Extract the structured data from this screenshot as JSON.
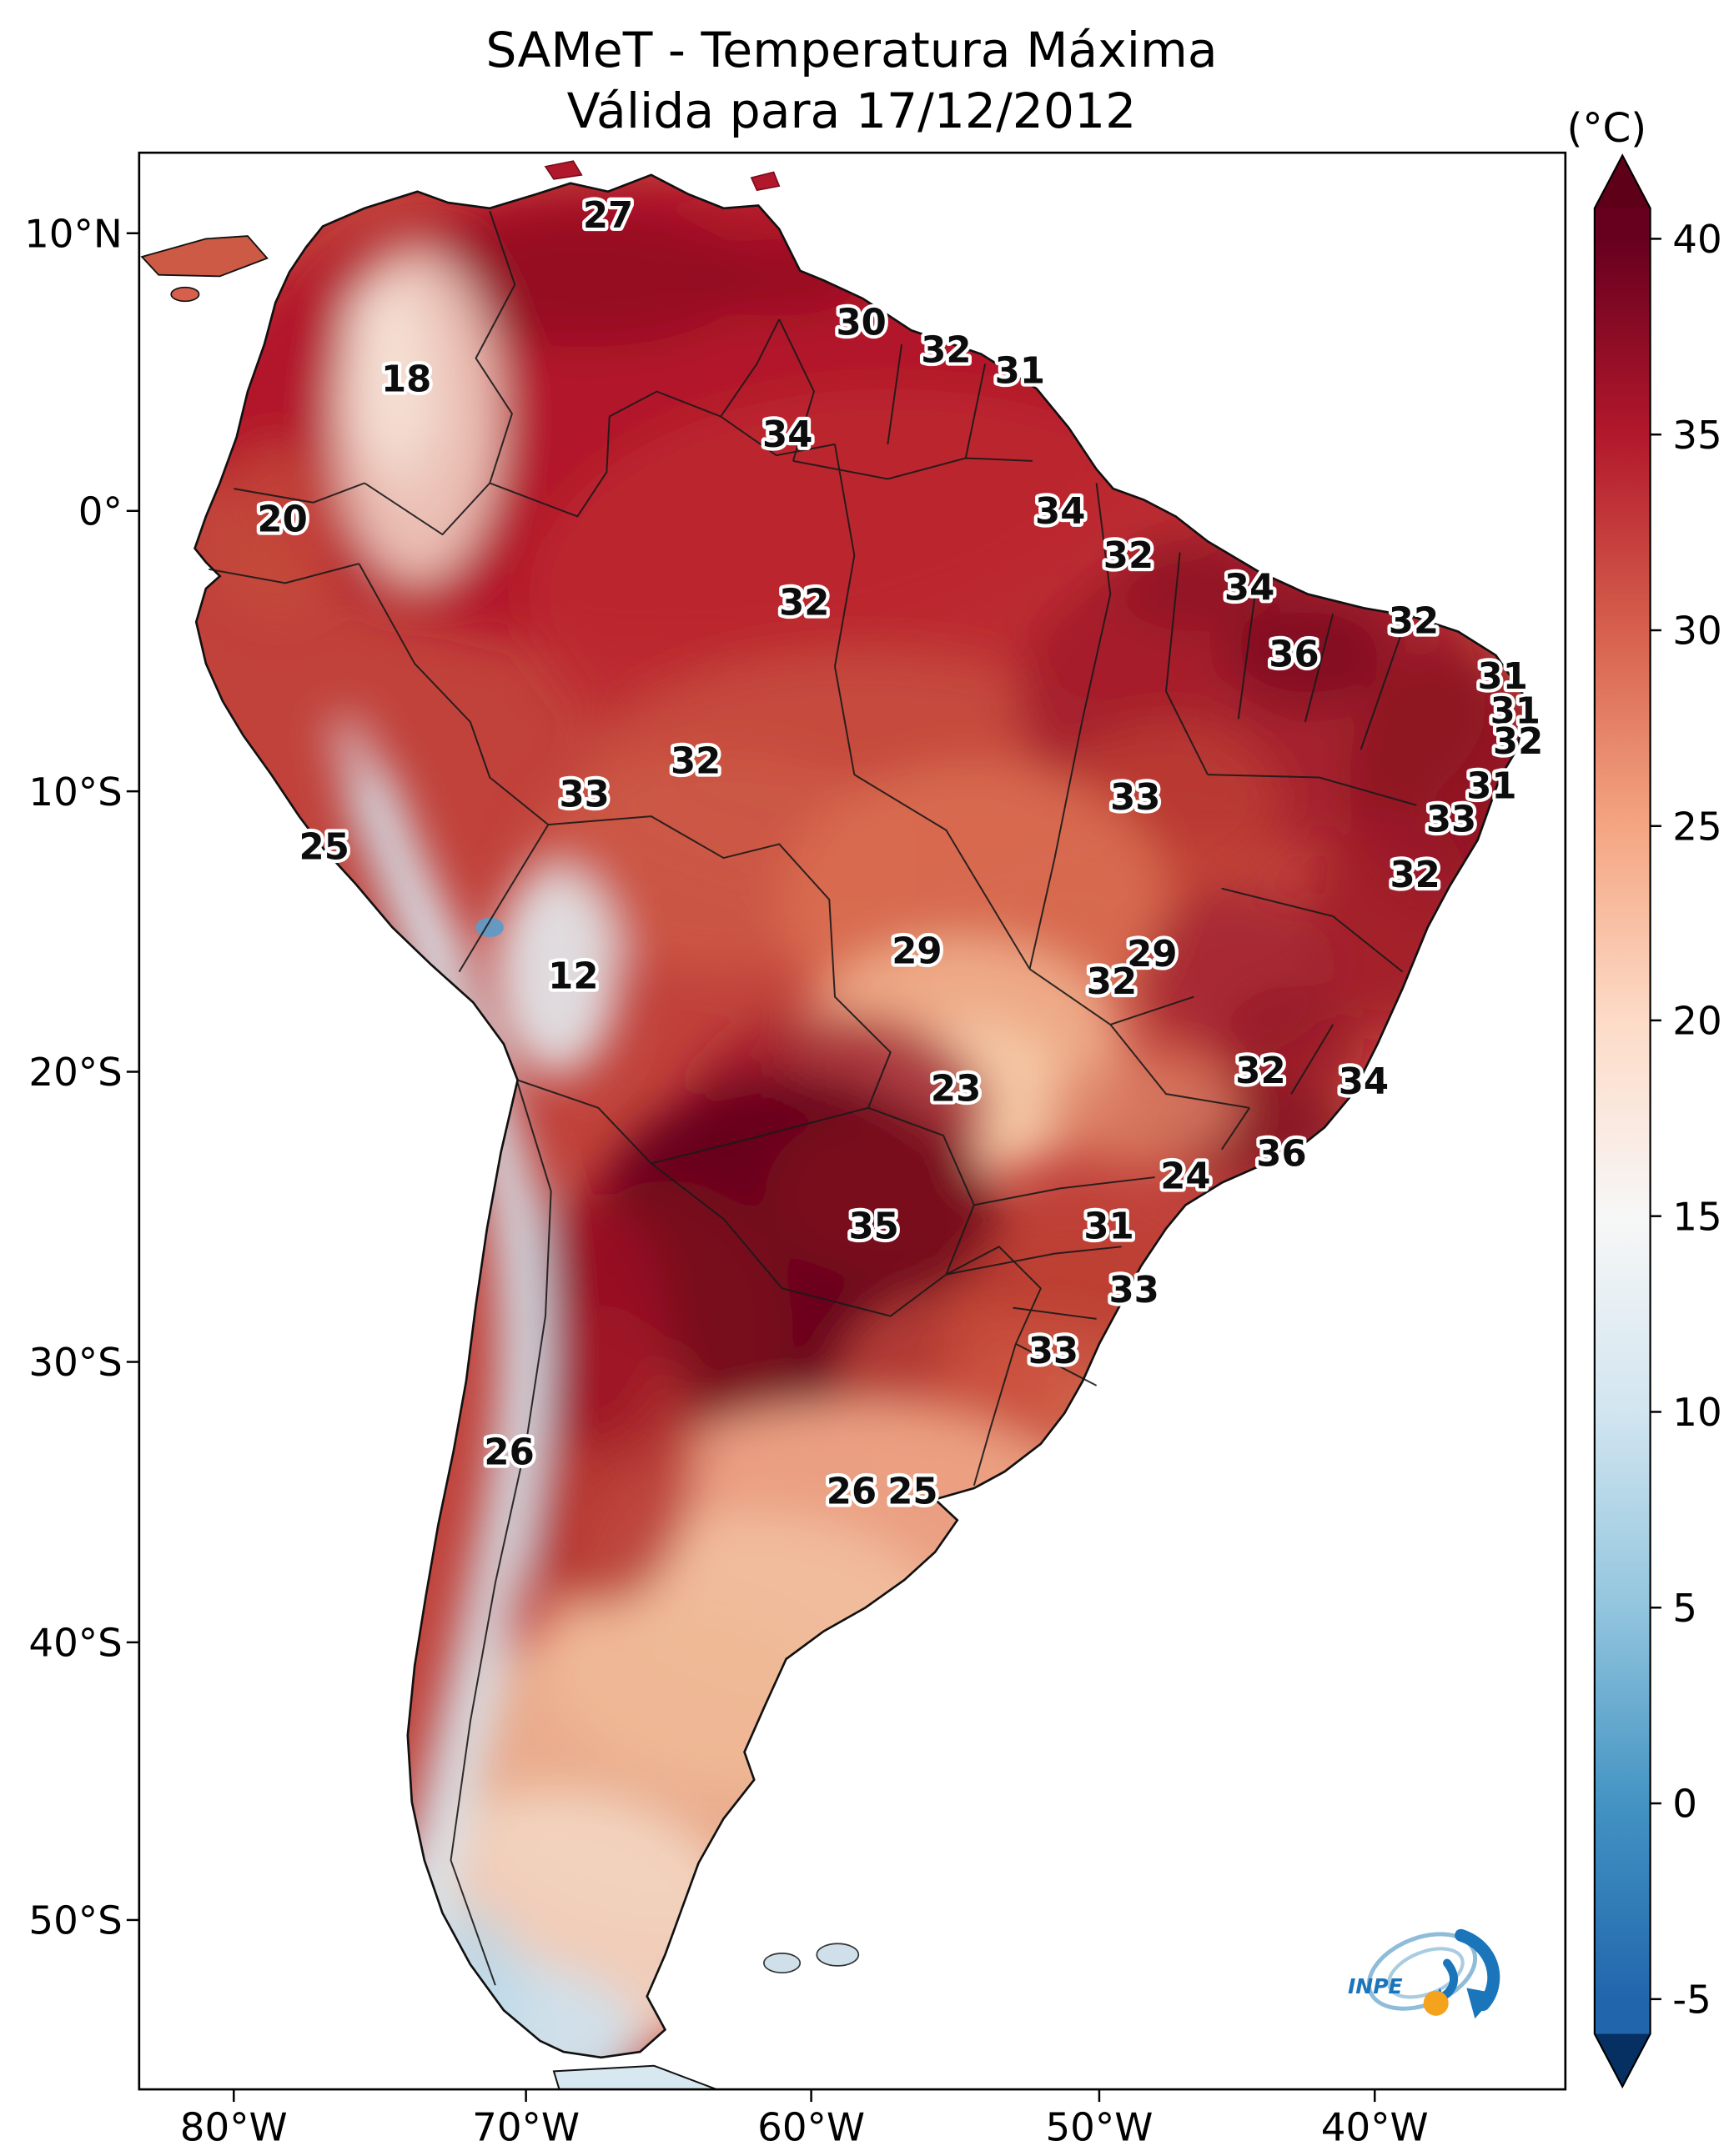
{
  "figure": {
    "title_line1": "SAMeT - Temperatura Máxima",
    "title_line2": "Válida para 17/12/2012"
  },
  "colorbar": {
    "unit_label": "(°C)",
    "top_color": "#67001f",
    "bottom_color": "#053061",
    "ticks": [
      {
        "label": "40",
        "y": 172
      },
      {
        "label": "35",
        "y": 313
      },
      {
        "label": "30",
        "y": 454
      },
      {
        "label": "25",
        "y": 595
      },
      {
        "label": "20",
        "y": 735
      },
      {
        "label": "15",
        "y": 876
      },
      {
        "label": "10",
        "y": 1017
      },
      {
        "label": "5",
        "y": 1158
      },
      {
        "label": "0",
        "y": 1299
      },
      {
        "label": "-5",
        "y": 1440
      }
    ]
  },
  "axes": {
    "y_ticks": [
      {
        "label": "10°N",
        "y": 168
      },
      {
        "label": "0°",
        "y": 368
      },
      {
        "label": "10°S",
        "y": 570
      },
      {
        "label": "20°S",
        "y": 772
      },
      {
        "label": "30°S",
        "y": 981
      },
      {
        "label": "40°S",
        "y": 1183
      },
      {
        "label": "50°S",
        "y": 1383
      }
    ],
    "x_ticks": [
      {
        "label": "80°W",
        "x": 168
      },
      {
        "label": "70°W",
        "x": 378
      },
      {
        "label": "60°W",
        "x": 583
      },
      {
        "label": "50°W",
        "x": 790
      },
      {
        "label": "40°W",
        "x": 988
      }
    ]
  },
  "logo": {
    "text": "INPE"
  },
  "chart_data": {
    "type": "heatmap",
    "title": "SAMeT - Temperatura Máxima",
    "subtitle": "Válida para 17/12/2012",
    "unit": "°C",
    "colormap": "RdBu_r",
    "value_range": [
      -5,
      40
    ],
    "region": "South America",
    "x_axis": {
      "label": "longitude",
      "ticks": [
        "80°W",
        "70°W",
        "60°W",
        "50°W",
        "40°W"
      ]
    },
    "y_axis": {
      "label": "latitude",
      "ticks": [
        "10°N",
        "0°",
        "10°S",
        "20°S",
        "30°S",
        "40°S",
        "50°S"
      ]
    },
    "colorbar_ticks": [
      40,
      35,
      30,
      25,
      20,
      15,
      10,
      5,
      0,
      -5
    ],
    "stations": [
      {
        "value": 27,
        "x": 437,
        "y": 155
      },
      {
        "value": 18,
        "x": 292,
        "y": 273
      },
      {
        "value": 30,
        "x": 619,
        "y": 232
      },
      {
        "value": 32,
        "x": 680,
        "y": 252
      },
      {
        "value": 31,
        "x": 733,
        "y": 267
      },
      {
        "value": 34,
        "x": 566,
        "y": 313
      },
      {
        "value": 20,
        "x": 203,
        "y": 374
      },
      {
        "value": 34,
        "x": 762,
        "y": 368
      },
      {
        "value": 32,
        "x": 811,
        "y": 400
      },
      {
        "value": 34,
        "x": 898,
        "y": 423
      },
      {
        "value": 32,
        "x": 578,
        "y": 434
      },
      {
        "value": 32,
        "x": 1016,
        "y": 447
      },
      {
        "value": 36,
        "x": 930,
        "y": 471
      },
      {
        "value": 31,
        "x": 1080,
        "y": 487
      },
      {
        "value": 31,
        "x": 1089,
        "y": 512
      },
      {
        "value": 32,
        "x": 1091,
        "y": 534
      },
      {
        "value": 32,
        "x": 500,
        "y": 548
      },
      {
        "value": 33,
        "x": 420,
        "y": 572
      },
      {
        "value": 31,
        "x": 1072,
        "y": 566
      },
      {
        "value": 33,
        "x": 816,
        "y": 574
      },
      {
        "value": 33,
        "x": 1043,
        "y": 590
      },
      {
        "value": 25,
        "x": 233,
        "y": 610
      },
      {
        "value": 32,
        "x": 1017,
        "y": 630
      },
      {
        "value": 29,
        "x": 659,
        "y": 685
      },
      {
        "value": 29,
        "x": 828,
        "y": 687
      },
      {
        "value": 32,
        "x": 799,
        "y": 707
      },
      {
        "value": 12,
        "x": 412,
        "y": 703
      },
      {
        "value": 23,
        "x": 687,
        "y": 784
      },
      {
        "value": 32,
        "x": 906,
        "y": 771
      },
      {
        "value": 34,
        "x": 980,
        "y": 779
      },
      {
        "value": 36,
        "x": 921,
        "y": 831
      },
      {
        "value": 24,
        "x": 852,
        "y": 847
      },
      {
        "value": 35,
        "x": 628,
        "y": 883
      },
      {
        "value": 31,
        "x": 797,
        "y": 883
      },
      {
        "value": 33,
        "x": 815,
        "y": 929
      },
      {
        "value": 33,
        "x": 757,
        "y": 973
      },
      {
        "value": 26,
        "x": 366,
        "y": 1046
      },
      {
        "value": 26,
        "x": 612,
        "y": 1074
      },
      {
        "value": 25,
        "x": 656,
        "y": 1074
      }
    ]
  }
}
